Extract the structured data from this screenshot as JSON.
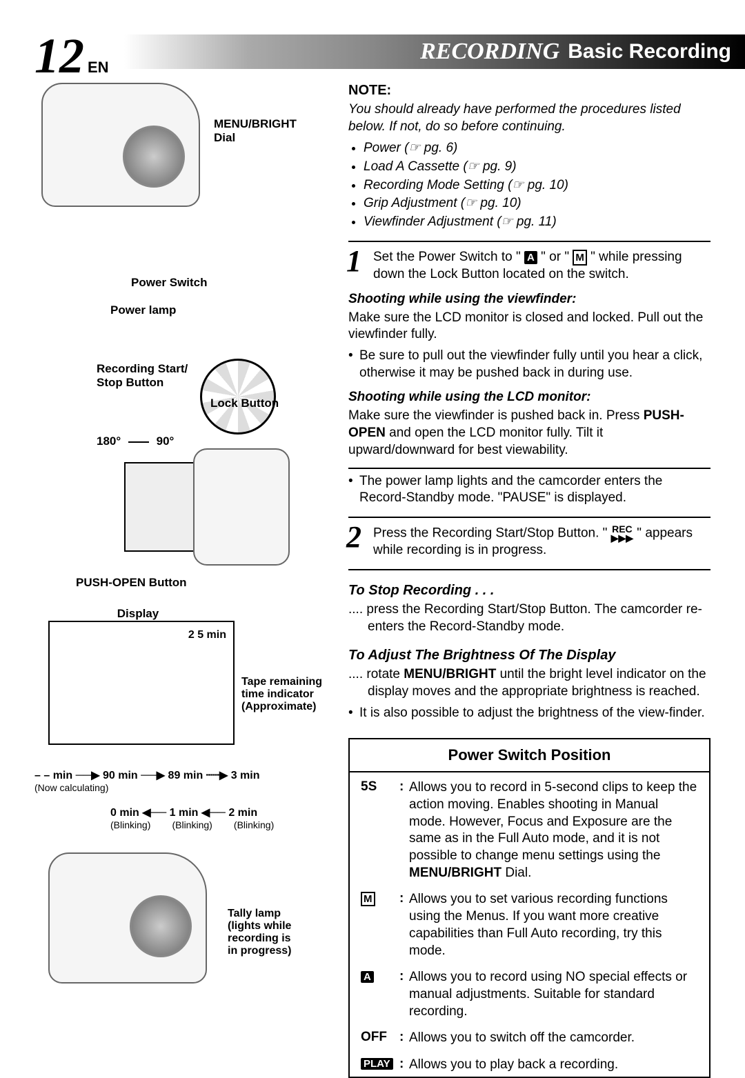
{
  "header": {
    "page_number": "12",
    "lang": "EN",
    "title1": "RECORDING",
    "title2": "Basic Recording"
  },
  "left": {
    "labels": {
      "menu_bright": "MENU/BRIGHT Dial",
      "power_switch": "Power Switch",
      "power_lamp": "Power lamp",
      "rec_start_stop": "Recording Start/\nStop Button",
      "lock_button": "Lock Button",
      "angle_180": "180°",
      "angle_90": "90°",
      "push_open": "PUSH-OPEN Button",
      "display": "Display",
      "display_value": "2 5 min",
      "tape_remaining_l1": "Tape remaining",
      "tape_remaining_l2": "time indicator",
      "tape_remaining_l3": "(Approximate)",
      "flow_top": "– – min ──▶ 90 min ──▶ 89 min ┄┄▶ 3 min",
      "now_calc": "(Now calculating)",
      "flow_bot": "0 min ◀── 1 min ◀── 2 min",
      "blinking": "(Blinking)",
      "tally_l1": "Tally lamp",
      "tally_l2": "(lights while",
      "tally_l3": "recording is",
      "tally_l4": "in progress)"
    }
  },
  "right": {
    "note_head": "NOTE:",
    "note_intro": "You should already have performed the procedures listed below. If not, do so before continuing.",
    "note_items": [
      "Power (☞ pg. 6)",
      "Load A Cassette (☞ pg. 9)",
      "Recording Mode Setting (☞ pg. 10)",
      "Grip Adjustment (☞ pg. 10)",
      "Viewfinder Adjustment (☞ pg. 11)"
    ],
    "step1": {
      "num": "1",
      "text_a": "Set the Power Switch to \" ",
      "icon_a": "A",
      "text_b": " \" or \" ",
      "icon_m": "M",
      "text_c": " \" while pressing down the Lock Button located on the switch.",
      "sub_vf_head": "Shooting while using the viewfinder:",
      "sub_vf_body": "Make sure the LCD monitor is closed and locked. Pull out the viewfinder fully.",
      "sub_vf_bullet": "Be sure to pull out the viewfinder fully until you hear a click, otherwise it may be pushed back in during use.",
      "sub_lcd_head": "Shooting while using the LCD monitor:",
      "sub_lcd_body_a": "Make sure the viewfinder is pushed back in. Press ",
      "push_open": "PUSH-OPEN",
      "sub_lcd_body_b": " and open the LCD monitor fully. Tilt it upward/downward for best viewability.",
      "after_bullet": "The power lamp lights and the camcorder enters the Record-Standby mode. \"PAUSE\" is displayed."
    },
    "step2": {
      "num": "2",
      "text_a": "Press the Recording Start/Stop Button. \" ",
      "rec_top": "REC",
      "rec_bot": "▶▶▶",
      "text_b": " \" appears while recording is in progress."
    },
    "stop": {
      "head": "To Stop Recording . . .",
      "body": ".... press the Recording Start/Stop Button. The camcorder re-enters the Record-Standby mode."
    },
    "bright": {
      "head": "To Adjust The Brightness Of The Display",
      "body_a": ".... rotate ",
      "mb": "MENU/BRIGHT",
      "body_b": " until the bright level indicator on the display moves and the appropriate brightness is reached.",
      "bullet": "It is also possible to adjust the brightness of the view-finder."
    },
    "psp": {
      "title": "Power Switch Position",
      "rows": [
        {
          "key": "5S",
          "key_style": "text",
          "desc_a": "Allows you to record in 5-second clips to keep the action moving. Enables shooting in Manual mode. However, Focus and Exposure are the same as in the Full Auto mode, and it is not possible to change menu settings using the ",
          "desc_bold": "MENU/BRIGHT",
          "desc_b": " Dial."
        },
        {
          "key": "M",
          "key_style": "outline",
          "desc_a": "Allows you to set various recording functions using the Menus. If you want more creative capabilities than Full Auto recording, try this mode.",
          "desc_bold": "",
          "desc_b": ""
        },
        {
          "key": "A",
          "key_style": "solid",
          "desc_a": "Allows you to record using NO special effects or manual adjustments. Suitable for standard recording.",
          "desc_bold": "",
          "desc_b": ""
        },
        {
          "key": "OFF",
          "key_style": "text",
          "desc_a": "Allows you to switch off the camcorder.",
          "desc_bold": "",
          "desc_b": ""
        },
        {
          "key": "PLAY",
          "key_style": "solid",
          "desc_a": "Allows you to play back a recording.",
          "desc_bold": "",
          "desc_b": ""
        }
      ]
    }
  }
}
